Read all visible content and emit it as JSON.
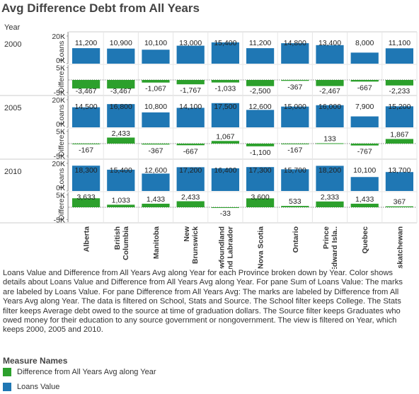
{
  "title": "Avg Difference Debt from All Years",
  "year_header": "Year",
  "caption": "Loans Value and Difference from All Years Avg along Year for each Province broken down by Year.  Color shows details about Loans Value and Difference from All Years Avg along Year.  For pane Sum of Loans Value:  The marks are labeled by Loans Value.  For pane Difference from All Years Avg:  The marks are labeled by Difference from All Years Avg along Year. The data is filtered on School, Stats and Source. The School filter keeps College. The Stats filter keeps Average debt owed to the source at time of graduation dollars. The Source filter keeps Graduates who owed money for their education to any source government or nongovernment. The view is filtered on Year, which keeps 2000, 2005 and 2010.",
  "legend": {
    "title": "Measure Names",
    "items": [
      {
        "label": "Difference from All Years Avg along Year",
        "color": "#2ca02c"
      },
      {
        "label": "Loans Value",
        "color": "#1f77b4"
      }
    ]
  },
  "axis_titles": {
    "loans": "Loans ..",
    "diff": "Differe.."
  },
  "axis_ticks": {
    "loans": [
      "20K",
      "0K"
    ],
    "diff": [
      "5K",
      "-5K"
    ]
  },
  "chart_data": {
    "type": "bar",
    "categories": [
      "Alberta",
      "British Columbia",
      "Manitoba",
      "New Brunswick",
      "Newfoundland and Labrador",
      "Nova Scotia",
      "Ontario",
      "Prince Edward Isla..",
      "Quebec",
      "Saskatchewan"
    ],
    "category_lines": [
      [
        "Alberta"
      ],
      [
        "British",
        "Columbia"
      ],
      [
        "Manitoba"
      ],
      [
        "New",
        "Brunswick"
      ],
      [
        "Newfoundland",
        "and Labrador"
      ],
      [
        "Nova Scotia"
      ],
      [
        "Ontario"
      ],
      [
        "Prince",
        "Edward Isla.."
      ],
      [
        "Quebec"
      ],
      [
        "Saskatchewan"
      ]
    ],
    "years": [
      "2000",
      "2005",
      "2010"
    ],
    "series": [
      {
        "name": "Loans Value",
        "color": "#1f77b4",
        "ylim": [
          0,
          22000
        ],
        "values": [
          [
            11200,
            10900,
            10100,
            13000,
            15400,
            11200,
            14800,
            13400,
            8000,
            11100
          ],
          [
            14500,
            16800,
            10800,
            14100,
            17500,
            12600,
            15000,
            16000,
            7900,
            15200
          ],
          [
            18300,
            15400,
            12600,
            17200,
            16400,
            17300,
            15700,
            18200,
            10100,
            13700
          ]
        ],
        "labels": [
          [
            "11,200",
            "10,900",
            "10,100",
            "13,000",
            "15,400",
            "11,200",
            "14,800",
            "13,400",
            "8,000",
            "11,100"
          ],
          [
            "14,500",
            "16,800",
            "10,800",
            "14,100",
            "17,500",
            "12,600",
            "15,000",
            "16,000",
            "7,900",
            "15,200"
          ],
          [
            "18,300",
            "15,400",
            "12,600",
            "17,200",
            "16,400",
            "17,300",
            "15,700",
            "18,200",
            "10,100",
            "13,700"
          ]
        ]
      },
      {
        "name": "Difference from All Years Avg along Year",
        "color": "#2ca02c",
        "ylim": [
          -6000,
          6000
        ],
        "values": [
          [
            -3467,
            -3467,
            -1067,
            -1767,
            -1033,
            -2500,
            -367,
            -2467,
            -667,
            -2233
          ],
          [
            -167,
            2433,
            -367,
            -667,
            1067,
            -1100,
            -167,
            133,
            -767,
            1867
          ],
          [
            3633,
            1033,
            1433,
            2433,
            -33,
            3600,
            533,
            2333,
            1433,
            367
          ]
        ],
        "labels": [
          [
            "-3,467",
            "-3,467",
            "-1,067",
            "-1,767",
            "-1,033",
            "-2,500",
            "-367",
            "-2,467",
            "-667",
            "-2,233"
          ],
          [
            "-167",
            "2,433",
            "-367",
            "-667",
            "1,067",
            "-1,100",
            "-167",
            "133",
            "-767",
            "1,867"
          ],
          [
            "3,633",
            "1,033",
            "1,433",
            "2,433",
            "-33",
            "3,600",
            "533",
            "2,333",
            "1,433",
            "367"
          ]
        ]
      }
    ]
  }
}
